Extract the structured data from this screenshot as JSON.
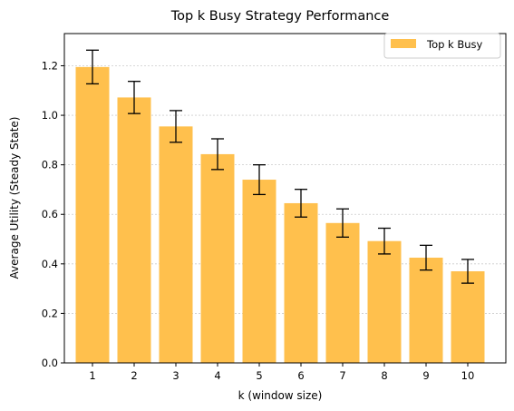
{
  "chart_data": {
    "type": "bar",
    "title": "Top k Busy Strategy Performance",
    "xlabel": "k (window size)",
    "ylabel": "Average Utility (Steady State)",
    "categories": [
      "1",
      "2",
      "3",
      "4",
      "5",
      "6",
      "7",
      "8",
      "9",
      "10"
    ],
    "series": [
      {
        "name": "Top k Busy",
        "values": [
          1.195,
          1.072,
          0.955,
          0.843,
          0.74,
          0.645,
          0.565,
          0.492,
          0.425,
          0.37
        ],
        "errors": [
          0.068,
          0.065,
          0.064,
          0.062,
          0.06,
          0.056,
          0.057,
          0.052,
          0.05,
          0.048
        ],
        "color": "#FFC04D"
      }
    ],
    "ylim": [
      0,
      1.33
    ],
    "yticks": [
      "0.0",
      "0.2",
      "0.4",
      "0.6",
      "0.8",
      "1.0",
      "1.2"
    ],
    "grid": "horizontal dotted",
    "legend_position": "top-right"
  }
}
